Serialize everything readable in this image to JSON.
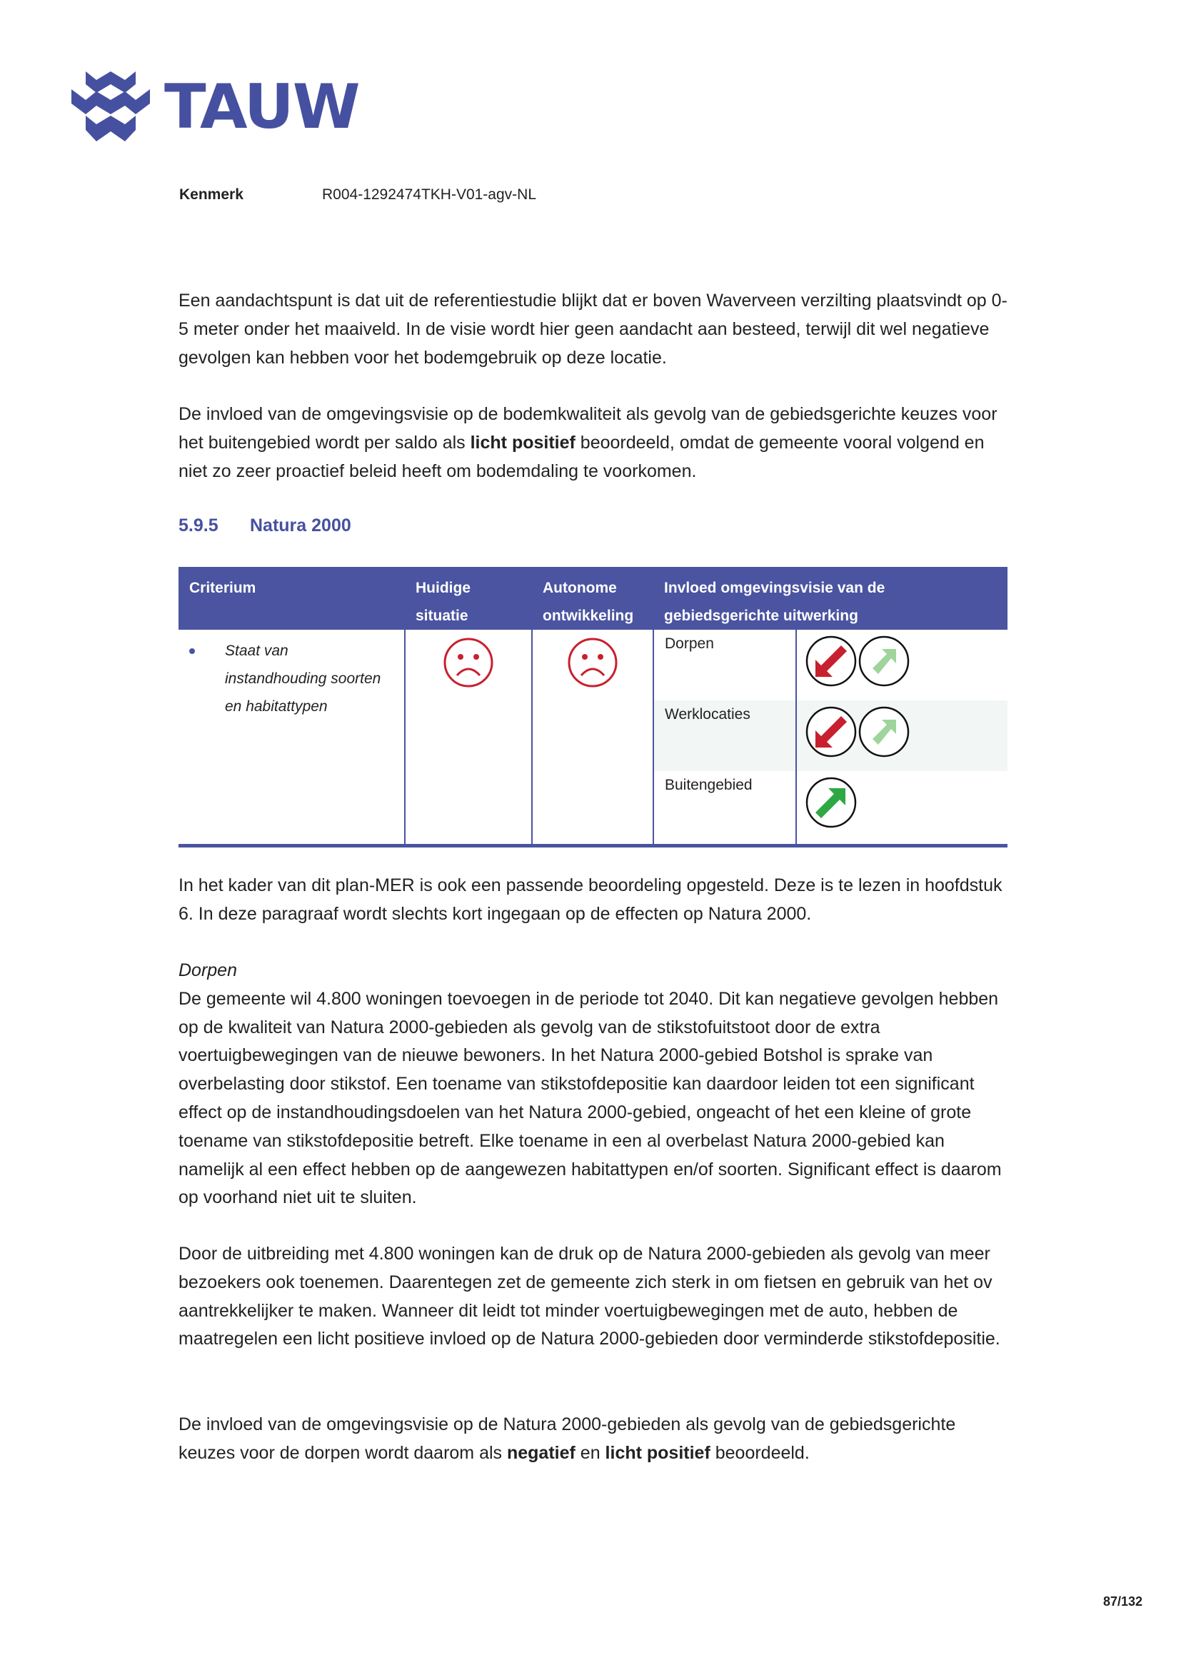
{
  "logo": {
    "text": "TAUW",
    "color": "#4650a0"
  },
  "kenmerk": {
    "label": "Kenmerk",
    "value": "R004-1292474TKH-V01-agv-NL"
  },
  "paragraphs_top": [
    [
      "Een aandachtspunt is dat uit de referentiestudie blijkt dat er boven Waverveen verzilting plaatsvindt op 0-5 meter onder het maaiveld. In de visie wordt hier geen aandacht aan besteed, terwijl dit wel negatieve gevolgen kan hebben voor het bodemgebruik op deze locatie."
    ],
    [
      "De invloed van de omgevingsvisie op de bodemkwaliteit als gevolg van de gebiedsgerichte keuzes voor het buitengebied wordt per saldo als ",
      "licht positief",
      " beoordeeld, omdat de gemeente vooral volgend en niet zo zeer proactief beleid heeft om bodemdaling te voorkomen."
    ]
  ],
  "section": {
    "number": "5.9.5",
    "title": "Natura 2000"
  },
  "table": {
    "headers": [
      "Criterium",
      "Huidige situatie",
      "Autonome ontwikkeling",
      "Invloed omgevingsvisie van de gebiedsgerichte uitwerking"
    ],
    "criterium": "Staat van instandhouding soorten en habitattypen",
    "huidige_icon": "sad-face-icon",
    "autonome_icon": "sad-face-icon",
    "rows": [
      {
        "label": "Dorpen",
        "icons": [
          "arrow-down-red-icon",
          "arrow-up-lightgreen-icon"
        ]
      },
      {
        "label": "Werklocaties",
        "icons": [
          "arrow-down-red-icon",
          "arrow-up-lightgreen-icon"
        ]
      },
      {
        "label": "Buitengebied",
        "icons": [
          "arrow-up-green-icon"
        ]
      }
    ],
    "colors": {
      "header": "#4a54a0",
      "negative": "#c8202e",
      "light_positive": "#9fd49c",
      "positive": "#2ea845"
    }
  },
  "p_mer": "In het kader van dit plan-MER is ook een passende beoordeling opgesteld. Deze is te lezen in hoofdstuk 6. In deze paragraaf wordt slechts kort ingegaan op de effecten op Natura 2000.",
  "dorpen_heading": "Dorpen",
  "p_dorpen1": "De gemeente wil 4.800 woningen toevoegen in de periode tot 2040. Dit kan negatieve gevolgen hebben op de kwaliteit van Natura 2000-gebieden als gevolg van de stikstofuitstoot door de extra voertuigbewegingen van de nieuwe bewoners. In het Natura 2000-gebied Botshol is sprake van overbelasting door stikstof. Een toename van stikstofdepositie kan daardoor leiden tot een significant effect op de instandhoudingsdoelen van het Natura 2000-gebied, ongeacht of het een kleine of grote toename van stikstofdepositie betreft. Elke toename in een al overbelast Natura 2000-gebied kan namelijk al een effect hebben op de aangewezen habitattypen en/of soorten. Significant effect is daarom op voorhand niet uit te sluiten.",
  "p_dorpen2": "Door de uitbreiding met 4.800 woningen kan de druk op de Natura 2000-gebieden als gevolg van meer bezoekers ook toenemen. Daarentegen zet de gemeente zich sterk in om fietsen en gebruik van het ov aantrekkelijker te maken. Wanneer dit leidt tot minder voertuigbewegingen met de auto, hebben de maatregelen een licht positieve invloed op de Natura 2000-gebieden door verminderde stikstofdepositie.",
  "p_final": [
    "De invloed van de omgevingsvisie op de Natura 2000-gebieden als gevolg van de gebiedsgerichte keuzes voor de dorpen wordt daarom als ",
    "negatief",
    " en ",
    "licht positief",
    " beoordeeld."
  ],
  "page_number": "87/132"
}
